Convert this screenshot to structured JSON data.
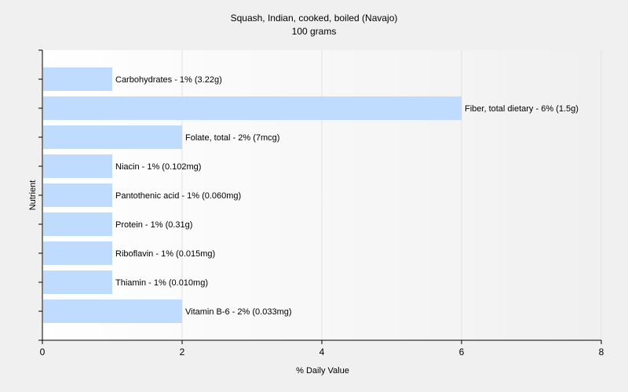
{
  "chart_data": {
    "type": "bar",
    "orientation": "horizontal",
    "title": "Squash, Indian, cooked, boiled (Navajo)",
    "subtitle": "100 grams",
    "xlabel": "% Daily Value",
    "ylabel": "Nutrient",
    "xlim": [
      0,
      8
    ],
    "xticks": [
      0,
      2,
      4,
      6,
      8
    ],
    "grid": true,
    "legend": "none",
    "bar_color": "#bfdcff",
    "categories": [
      "Carbohydrates",
      "Fiber, total dietary",
      "Folate, total",
      "Niacin",
      "Pantothenic acid",
      "Protein",
      "Riboflavin",
      "Thiamin",
      "Vitamin B-6"
    ],
    "values": [
      1,
      6,
      2,
      1,
      1,
      1,
      1,
      1,
      2
    ],
    "labels": [
      "Carbohydrates - 1% (3.22g)",
      "Fiber, total dietary - 6% (1.5g)",
      "Folate, total - 2% (7mcg)",
      "Niacin - 1% (0.102mg)",
      "Pantothenic acid - 1% (0.060mg)",
      "Protein - 1% (0.31g)",
      "Riboflavin - 1% (0.015mg)",
      "Thiamin - 1% (0.010mg)",
      "Vitamin B-6 - 2% (0.033mg)"
    ]
  }
}
